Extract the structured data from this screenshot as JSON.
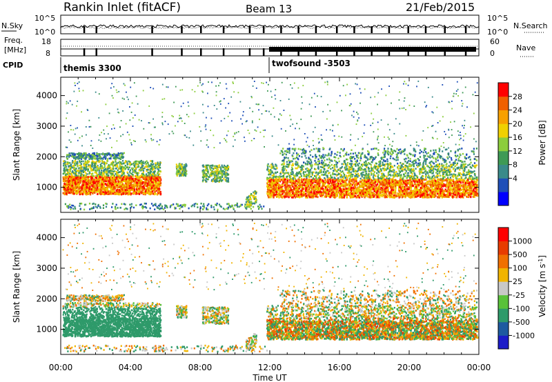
{
  "header": {
    "station": "Rankin Inlet (fitACF)",
    "beam": "Beam 13",
    "date": "21/Feb/2015"
  },
  "top_panels": {
    "nsky_label": "N.Sky",
    "nsearch_label": "N.Search",
    "freq_label": "Freq.",
    "freq_unit": "[MHz]",
    "nave_label": "Nave",
    "cpid_label": "CPID",
    "nsky_ticks": [
      "10^5",
      "10^0"
    ],
    "nsearch_ticks": [
      "10^5",
      "10^0"
    ],
    "freq_ticks": [
      "18",
      "8"
    ],
    "nave_ticks": [
      "60",
      "0"
    ],
    "cpid_modes": [
      {
        "name": "themis 3300",
        "start_hour": 0
      },
      {
        "name": "twofsound -3503",
        "start_hour": 12
      }
    ]
  },
  "chart_data": [
    {
      "type": "heatmap",
      "title": "",
      "xlabel": "Time UT",
      "ylabel": "Slant Range [km]",
      "xlim": [
        0,
        24
      ],
      "ylim": [
        180,
        4600
      ],
      "x_ticks": [
        "00:00",
        "04:00",
        "08:00",
        "12:00",
        "16:00",
        "20:00",
        "00:00"
      ],
      "y_ticks": [
        1000,
        2000,
        3000,
        4000
      ],
      "colorbar": {
        "label": "Power [dB]",
        "ticks": [
          "28",
          "24",
          "20",
          "16",
          "12",
          "8",
          "4"
        ],
        "range": [
          0,
          30
        ]
      }
    },
    {
      "type": "heatmap",
      "title": "",
      "xlabel": "Time UT",
      "ylabel": "Slant Range [km]",
      "xlim": [
        0,
        24
      ],
      "ylim": [
        180,
        4600
      ],
      "x_ticks": [
        "00:00",
        "04:00",
        "08:00",
        "12:00",
        "16:00",
        "20:00",
        "00:00"
      ],
      "y_ticks": [
        1000,
        2000,
        3000,
        4000
      ],
      "colorbar": {
        "label": "Velocity [m s",
        "label_sup": "-1",
        "label_end": "]",
        "ticks": [
          "1000",
          "500",
          "100",
          "25",
          "-25",
          "-100",
          "-500",
          "-1000"
        ]
      }
    }
  ],
  "x_axis": {
    "label": "Time UT",
    "ticks": [
      "00:00",
      "04:00",
      "08:00",
      "12:00",
      "16:00",
      "20:00",
      "00:00"
    ]
  },
  "colors": {
    "power": [
      "#0000ff",
      "#1f4fb8",
      "#3a8a8a",
      "#3e9a55",
      "#8ccd3c",
      "#f0d000",
      "#f7a000",
      "#f06000",
      "#ff0000"
    ],
    "velocity": [
      "#1c1cc8",
      "#1e5aa0",
      "#2e9a6a",
      "#59c23a",
      "#c8c8c8",
      "#f0b400",
      "#f07000",
      "#e83c00",
      "#ff0000"
    ]
  }
}
